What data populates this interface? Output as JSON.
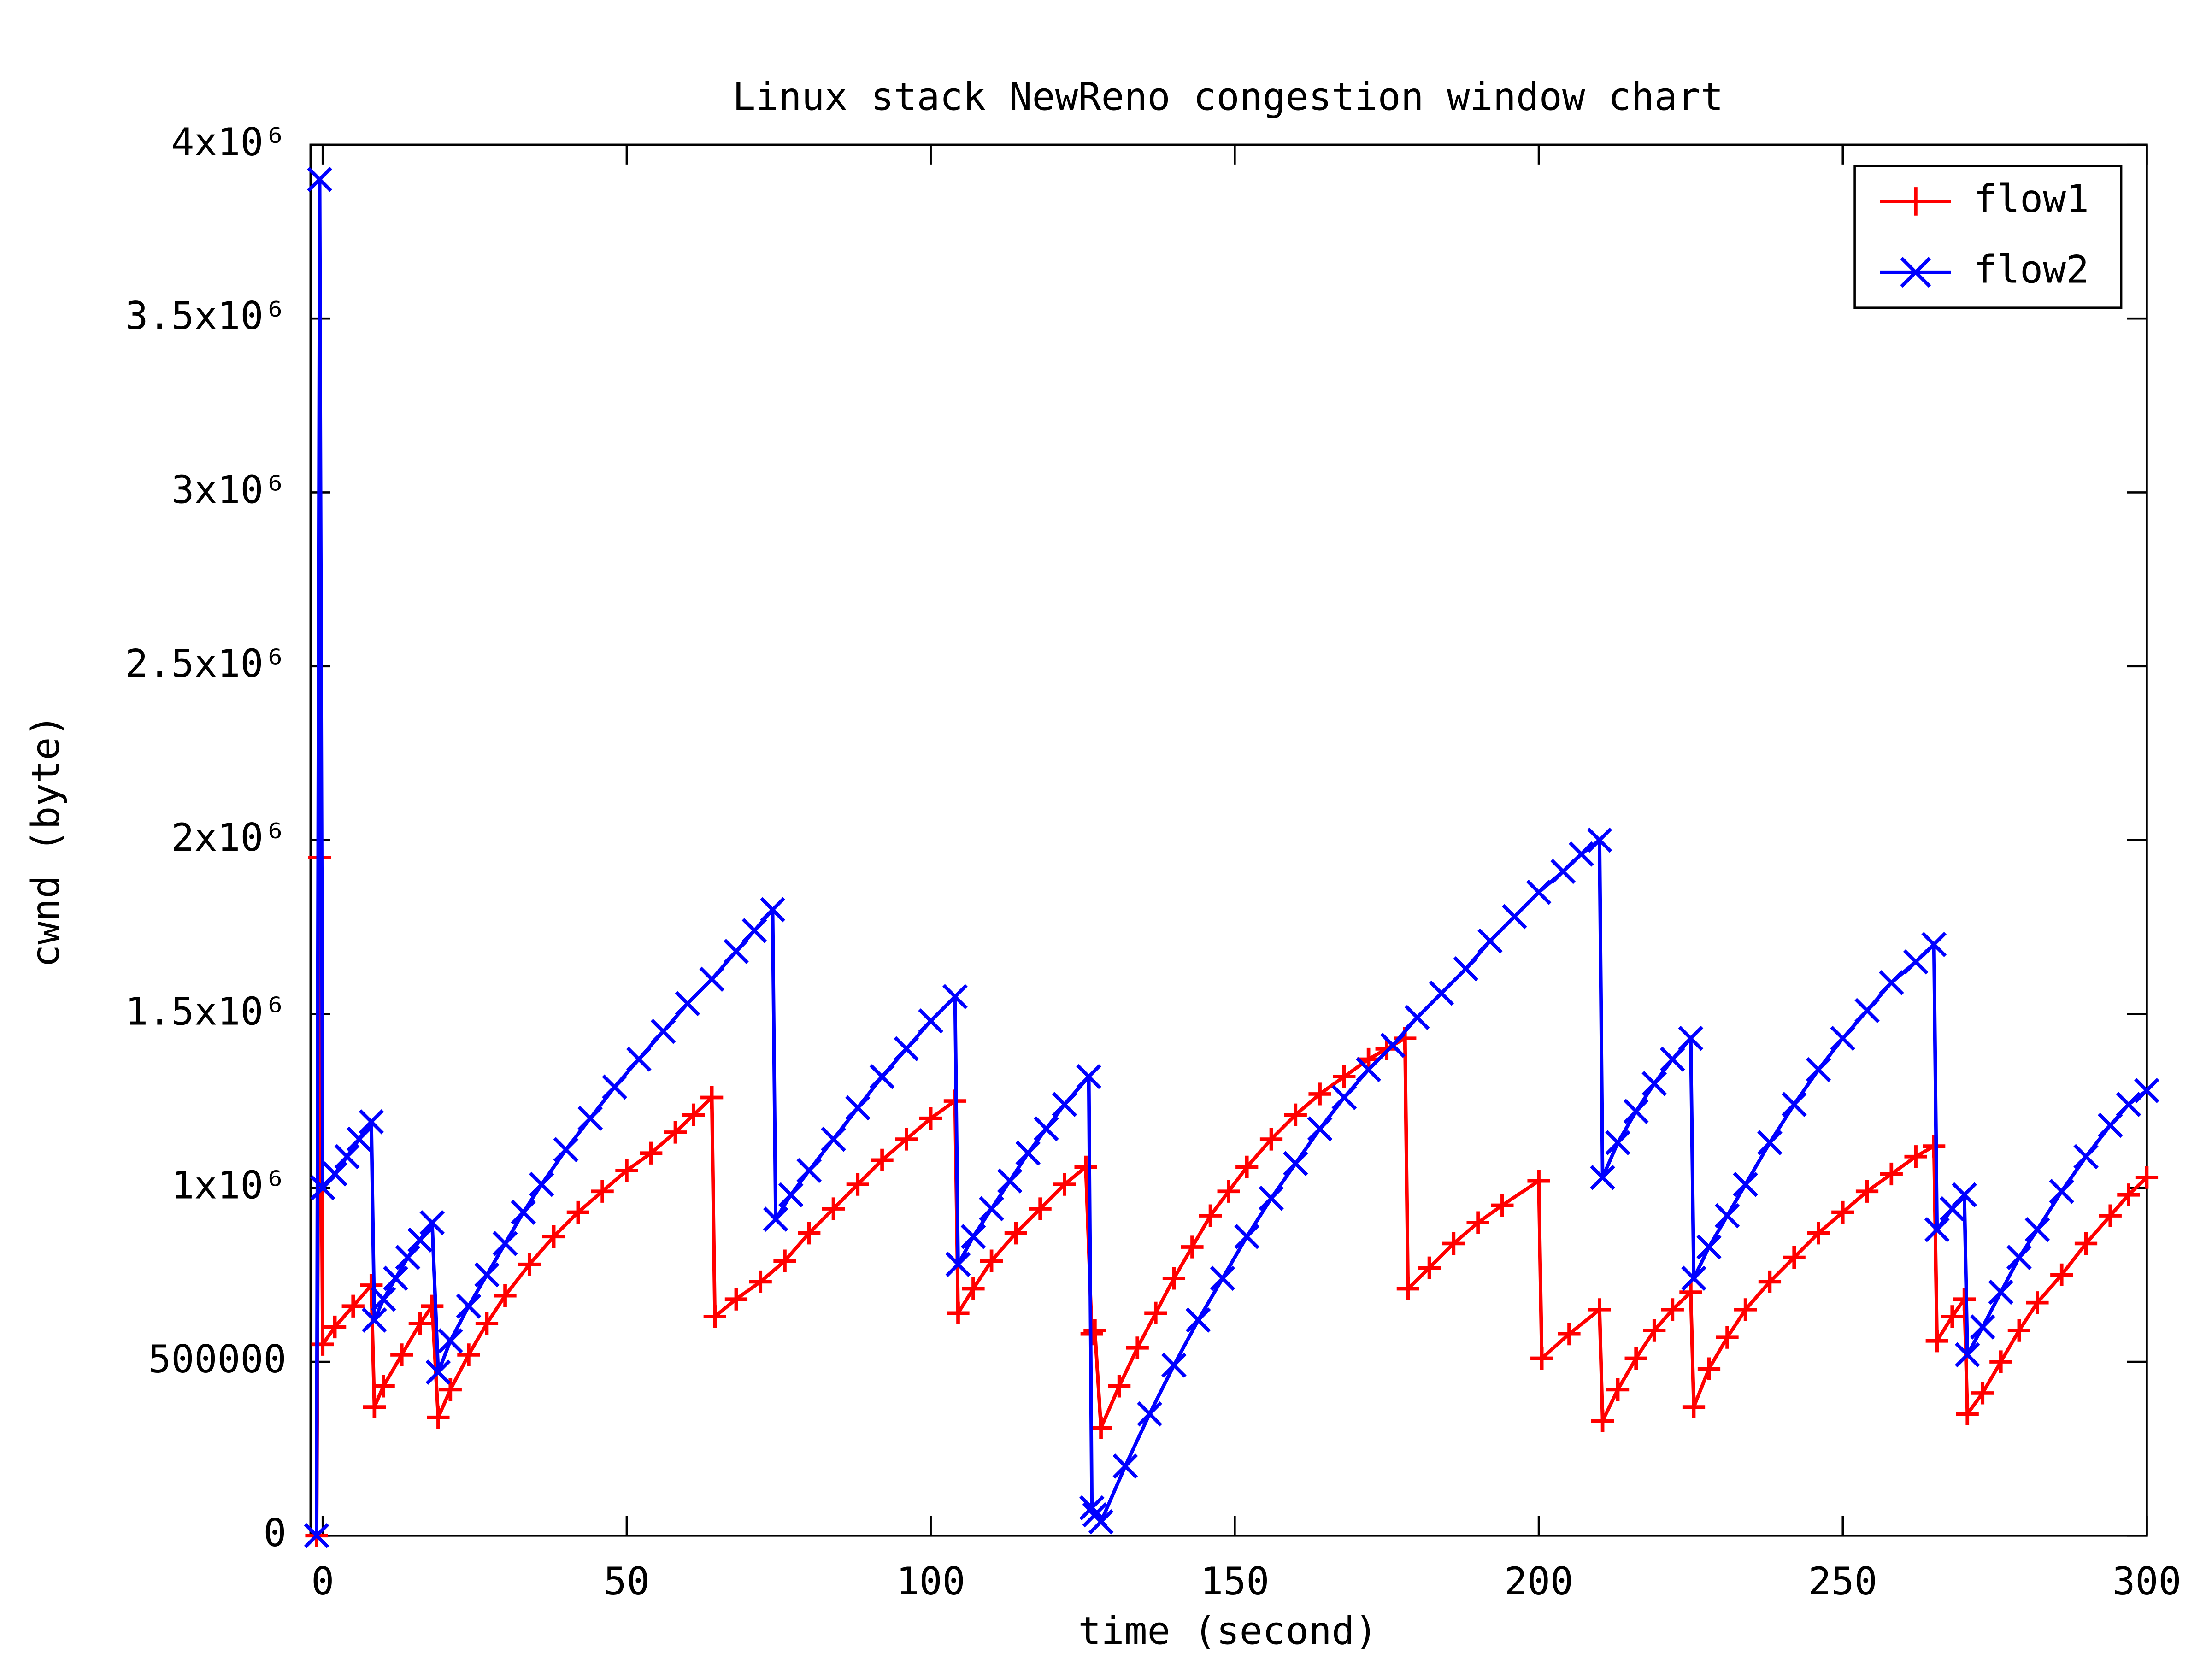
{
  "chart_data": {
    "type": "line",
    "title": "Linux stack NewReno congestion window chart",
    "x_label": "time (second)",
    "y_label": "cwnd (byte)",
    "xlim": [
      -2,
      300
    ],
    "xticks": [
      0,
      50,
      100,
      150,
      200,
      250,
      300
    ],
    "ylim": [
      0,
      4000000
    ],
    "yticks": [
      0,
      500000,
      {
        "value": 1000000,
        "label": "1x10⁶"
      },
      {
        "value": 1500000,
        "label": "1.5x10⁶"
      },
      {
        "value": 2000000,
        "label": "2x10⁶"
      },
      {
        "value": 2500000,
        "label": "2.5x10⁶"
      },
      {
        "value": 3000000,
        "label": "3x10⁶"
      },
      {
        "value": 3500000,
        "label": "3.5x10⁶"
      },
      {
        "value": 4000000,
        "label": "4x10⁶"
      }
    ],
    "legend": "top-right",
    "series": [
      {
        "name": "flow1",
        "color": "#ff0000",
        "marker": "+",
        "x": [
          -1,
          -0.5,
          0,
          2,
          5,
          8,
          8.5,
          10,
          13,
          16,
          18,
          19,
          21,
          24,
          27,
          30,
          34,
          38,
          42,
          46,
          50,
          54,
          58,
          61,
          64,
          64.5,
          68,
          72,
          76,
          80,
          84,
          88,
          92,
          96,
          100,
          104,
          104.5,
          107,
          110,
          114,
          118,
          122,
          125.5,
          126.5,
          127,
          128,
          131,
          134,
          137,
          140,
          143,
          146,
          149,
          152,
          156,
          160,
          164,
          168,
          172,
          175,
          178,
          178.5,
          182,
          186,
          190,
          194,
          200,
          200.5,
          205,
          210,
          210.5,
          213,
          216,
          219,
          222,
          225,
          225.5,
          228,
          231,
          234,
          238,
          242,
          246,
          250,
          254,
          258,
          262,
          265,
          265.5,
          268,
          270,
          270.5,
          273,
          276,
          279,
          282,
          286,
          290,
          294,
          297,
          300
        ],
        "values": [
          0,
          1950000,
          550000,
          600000,
          660000,
          720000,
          370000,
          430000,
          520000,
          610000,
          660000,
          340000,
          420000,
          520000,
          610000,
          690000,
          780000,
          860000,
          930000,
          990000,
          1050000,
          1100000,
          1160000,
          1210000,
          1260000,
          630000,
          680000,
          730000,
          790000,
          870000,
          940000,
          1010000,
          1080000,
          1140000,
          1200000,
          1250000,
          640000,
          710000,
          790000,
          870000,
          940000,
          1010000,
          1060000,
          580000,
          590000,
          310000,
          430000,
          540000,
          640000,
          740000,
          830000,
          920000,
          990000,
          1060000,
          1140000,
          1210000,
          1270000,
          1320000,
          1370000,
          1400000,
          1430000,
          710000,
          770000,
          840000,
          900000,
          950000,
          1020000,
          510000,
          580000,
          650000,
          330000,
          420000,
          510000,
          590000,
          650000,
          700000,
          370000,
          480000,
          570000,
          650000,
          730000,
          800000,
          870000,
          930000,
          990000,
          1040000,
          1090000,
          1120000,
          560000,
          630000,
          680000,
          350000,
          410000,
          500000,
          590000,
          670000,
          750000,
          840000,
          920000,
          980000,
          1030000
        ]
      },
      {
        "name": "flow2",
        "color": "#0000ff",
        "marker": "x",
        "x": [
          -1,
          -0.5,
          0,
          2,
          4,
          6,
          8,
          8.5,
          10,
          12,
          14,
          16,
          18,
          19,
          21,
          24,
          27,
          30,
          33,
          36,
          40,
          44,
          48,
          52,
          56,
          60,
          64,
          68,
          71,
          74,
          74.5,
          77,
          80,
          84,
          88,
          92,
          96,
          100,
          104,
          104.5,
          107,
          110,
          113,
          116,
          119,
          122,
          126,
          126.5,
          127,
          128,
          132,
          136,
          140,
          144,
          148,
          152,
          156,
          160,
          164,
          168,
          172,
          176,
          180,
          184,
          188,
          192,
          196,
          200,
          204,
          207,
          210,
          210.5,
          213,
          216,
          219,
          222,
          225,
          225.5,
          228,
          231,
          234,
          238,
          242,
          246,
          250,
          254,
          258,
          262,
          265,
          265.5,
          268,
          270,
          270.5,
          273,
          276,
          279,
          282,
          286,
          290,
          294,
          297,
          300
        ],
        "values": [
          0,
          3900000,
          1000000,
          1040000,
          1090000,
          1140000,
          1190000,
          620000,
          680000,
          740000,
          800000,
          850000,
          900000,
          470000,
          560000,
          660000,
          750000,
          840000,
          930000,
          1010000,
          1110000,
          1200000,
          1290000,
          1370000,
          1450000,
          1530000,
          1600000,
          1680000,
          1740000,
          1800000,
          910000,
          980000,
          1050000,
          1140000,
          1230000,
          1320000,
          1400000,
          1480000,
          1550000,
          780000,
          860000,
          940000,
          1020000,
          1100000,
          1170000,
          1240000,
          1320000,
          80000,
          60000,
          40000,
          200000,
          350000,
          490000,
          620000,
          740000,
          860000,
          970000,
          1070000,
          1170000,
          1260000,
          1340000,
          1410000,
          1490000,
          1560000,
          1630000,
          1710000,
          1780000,
          1850000,
          1910000,
          1960000,
          2000000,
          1030000,
          1130000,
          1220000,
          1300000,
          1370000,
          1430000,
          740000,
          830000,
          920000,
          1010000,
          1130000,
          1240000,
          1340000,
          1430000,
          1510000,
          1590000,
          1650000,
          1700000,
          880000,
          940000,
          980000,
          520000,
          600000,
          700000,
          800000,
          880000,
          990000,
          1090000,
          1180000,
          1240000,
          1280000
        ]
      }
    ]
  }
}
